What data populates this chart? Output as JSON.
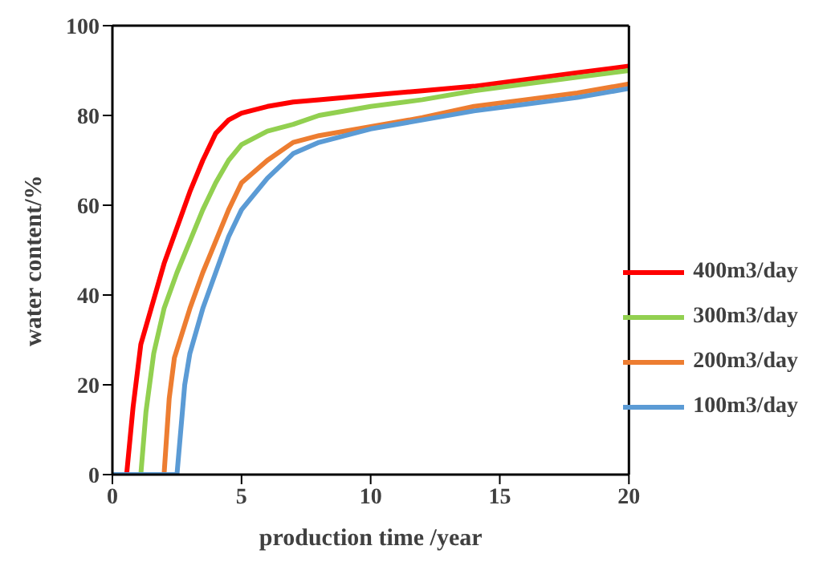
{
  "chart_data": {
    "type": "line",
    "xlabel": "production time /year",
    "ylabel": "water content/%",
    "xlim": [
      0,
      20
    ],
    "xticks": [
      0,
      5,
      10,
      15,
      20
    ],
    "ylim": [
      0,
      100
    ],
    "yticks": [
      0,
      20,
      40,
      60,
      80,
      100
    ],
    "grid": false,
    "legend": "bottom right",
    "marker": "none",
    "line_style": "solid",
    "series": [
      {
        "name": "400m3/day",
        "color": "#ff0000",
        "x": [
          0,
          0.55,
          0.8,
          1.1,
          1.5,
          2,
          2.5,
          3,
          3.5,
          4,
          4.5,
          5,
          6,
          7,
          8,
          10,
          12,
          14,
          16,
          18,
          20
        ],
        "values": [
          0,
          0,
          15,
          29,
          37,
          47,
          55,
          63,
          70,
          76,
          79,
          80.5,
          82,
          83,
          83.5,
          84.5,
          85.5,
          86.5,
          88,
          89.5,
          91
        ]
      },
      {
        "name": "300m3/day",
        "color": "#92d050",
        "x": [
          0,
          1.1,
          1.3,
          1.6,
          2,
          2.5,
          3,
          3.5,
          4,
          4.5,
          5,
          6,
          7,
          8,
          10,
          12,
          14,
          16,
          18,
          20
        ],
        "values": [
          0,
          0,
          14,
          27,
          37,
          45,
          52,
          59,
          65,
          70,
          73.5,
          76.5,
          78,
          80,
          82,
          83.5,
          85.5,
          87,
          88.5,
          90
        ]
      },
      {
        "name": "200m3/day",
        "color": "#ed7d31",
        "x": [
          0,
          2,
          2.2,
          2.4,
          3,
          3.5,
          4,
          4.5,
          5,
          6,
          7,
          8,
          10,
          12,
          14,
          16,
          18,
          20
        ],
        "values": [
          0,
          0,
          17,
          26,
          37,
          45,
          52,
          59,
          65,
          70,
          74,
          75.5,
          77.5,
          79.5,
          82,
          83.5,
          85,
          87
        ]
      },
      {
        "name": "100m3/day",
        "color": "#5b9bd5",
        "x": [
          0,
          2.5,
          2.8,
          3,
          3.5,
          4,
          4.5,
          5,
          6,
          7,
          8,
          10,
          12,
          14,
          16,
          18,
          20
        ],
        "values": [
          0,
          0,
          20,
          27,
          37,
          45,
          53,
          59,
          66,
          71.5,
          74,
          77,
          79,
          81,
          82.5,
          84,
          86
        ]
      }
    ]
  }
}
